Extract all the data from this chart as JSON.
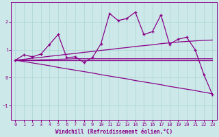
{
  "xlabel": "Windchill (Refroidissement éolien,°C)",
  "background_color": "#cce8e8",
  "line_color": "#880088",
  "xlim": [
    -0.5,
    23.5
  ],
  "ylim": [
    -1.5,
    2.7
  ],
  "x_ticks": [
    0,
    1,
    2,
    3,
    4,
    5,
    6,
    7,
    8,
    9,
    10,
    11,
    12,
    13,
    14,
    15,
    16,
    17,
    18,
    19,
    20,
    21,
    22,
    23
  ],
  "y_ticks": [
    -1,
    0,
    1,
    2
  ],
  "grid_color": "#aad4d4",
  "y_main": [
    0.63,
    0.82,
    0.75,
    0.85,
    1.2,
    1.55,
    0.72,
    0.75,
    0.55,
    0.72,
    1.22,
    2.3,
    2.05,
    2.12,
    2.35,
    1.55,
    1.65,
    2.25,
    1.2,
    1.38,
    1.45,
    1.0,
    0.12,
    -0.6
  ],
  "y_flat": [
    0.63,
    0.63,
    0.63,
    0.63,
    0.63,
    0.63,
    0.63,
    0.63,
    0.63,
    0.63,
    0.63,
    0.63,
    0.63,
    0.63,
    0.63,
    0.63,
    0.63,
    0.63,
    0.63,
    0.63,
    0.63,
    0.63,
    0.63,
    0.63
  ],
  "y_diag": [
    0.63,
    0.58,
    0.53,
    0.48,
    0.43,
    0.37,
    0.32,
    0.27,
    0.22,
    0.17,
    0.11,
    0.06,
    0.01,
    -0.04,
    -0.1,
    -0.15,
    -0.2,
    -0.25,
    -0.31,
    -0.36,
    -0.41,
    -0.46,
    -0.52,
    -0.57
  ],
  "y_rise": [
    0.63,
    0.66,
    0.7,
    0.73,
    0.77,
    0.8,
    0.84,
    0.87,
    0.91,
    0.94,
    0.98,
    1.01,
    1.05,
    1.08,
    1.12,
    1.15,
    1.18,
    1.22,
    1.25,
    1.28,
    1.3,
    1.32,
    1.34,
    1.35
  ],
  "y_flat2": [
    0.63,
    0.63,
    0.63,
    0.64,
    0.65,
    0.66,
    0.67,
    0.68,
    0.68,
    0.68,
    0.68,
    0.68,
    0.68,
    0.68,
    0.68,
    0.68,
    0.68,
    0.68,
    0.68,
    0.68,
    0.68,
    0.68,
    0.68,
    0.68
  ]
}
